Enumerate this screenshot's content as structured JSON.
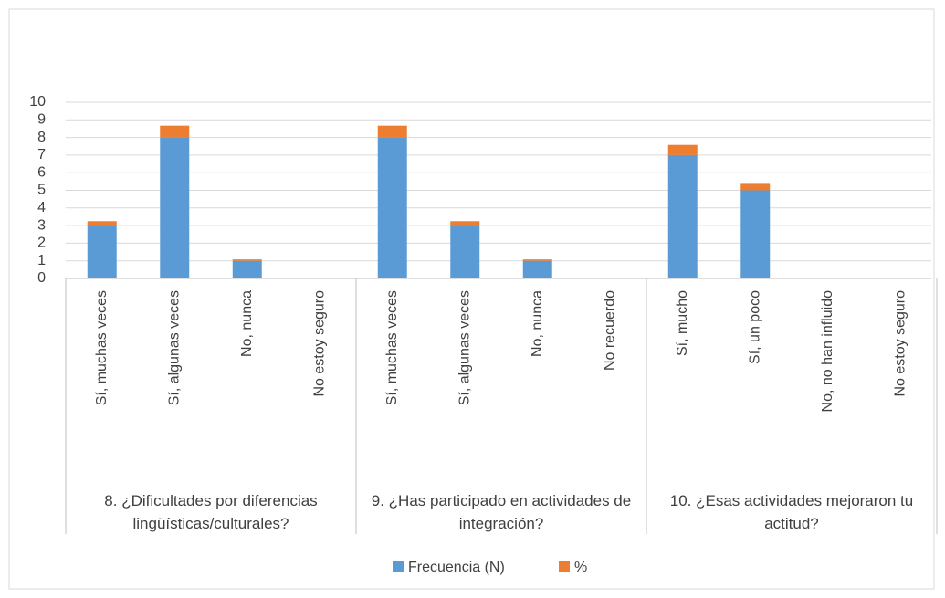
{
  "chart_data": {
    "type": "stacked_bar",
    "groups": [
      {
        "label": "8. ¿Dificultades por diferencias lingüísticas/culturales?",
        "categories": [
          "Sí, muchas veces",
          "Sí, algunas veces",
          "No, nunca",
          "No estoy seguro"
        ]
      },
      {
        "label": "9. ¿Has participado en actividades de integración?",
        "categories": [
          "Sí, muchas veces",
          "Sí, algunas veces",
          "No, nunca",
          "No recuerdo"
        ]
      },
      {
        "label": "10. ¿Esas actividades mejoraron tu actitud?",
        "categories": [
          "Sí, mucho",
          "Sí, un poco",
          "No, no han influido",
          "No estoy seguro"
        ]
      }
    ],
    "series": [
      {
        "name": "Frecuencia (N)",
        "color": "#5b9bd5",
        "values": [
          3,
          8,
          1,
          0,
          8,
          3,
          1,
          0,
          7,
          5,
          0,
          0
        ]
      },
      {
        "name": "%",
        "color": "#ed7d31",
        "values": [
          0.25,
          0.67,
          0.08,
          0,
          0.67,
          0.25,
          0.08,
          0,
          0.58,
          0.42,
          0,
          0
        ]
      }
    ],
    "ylim": [
      0,
      10
    ],
    "yticks": [
      0,
      1,
      2,
      3,
      4,
      5,
      6,
      7,
      8,
      9,
      10
    ],
    "grid": true,
    "legend": "bottom"
  }
}
